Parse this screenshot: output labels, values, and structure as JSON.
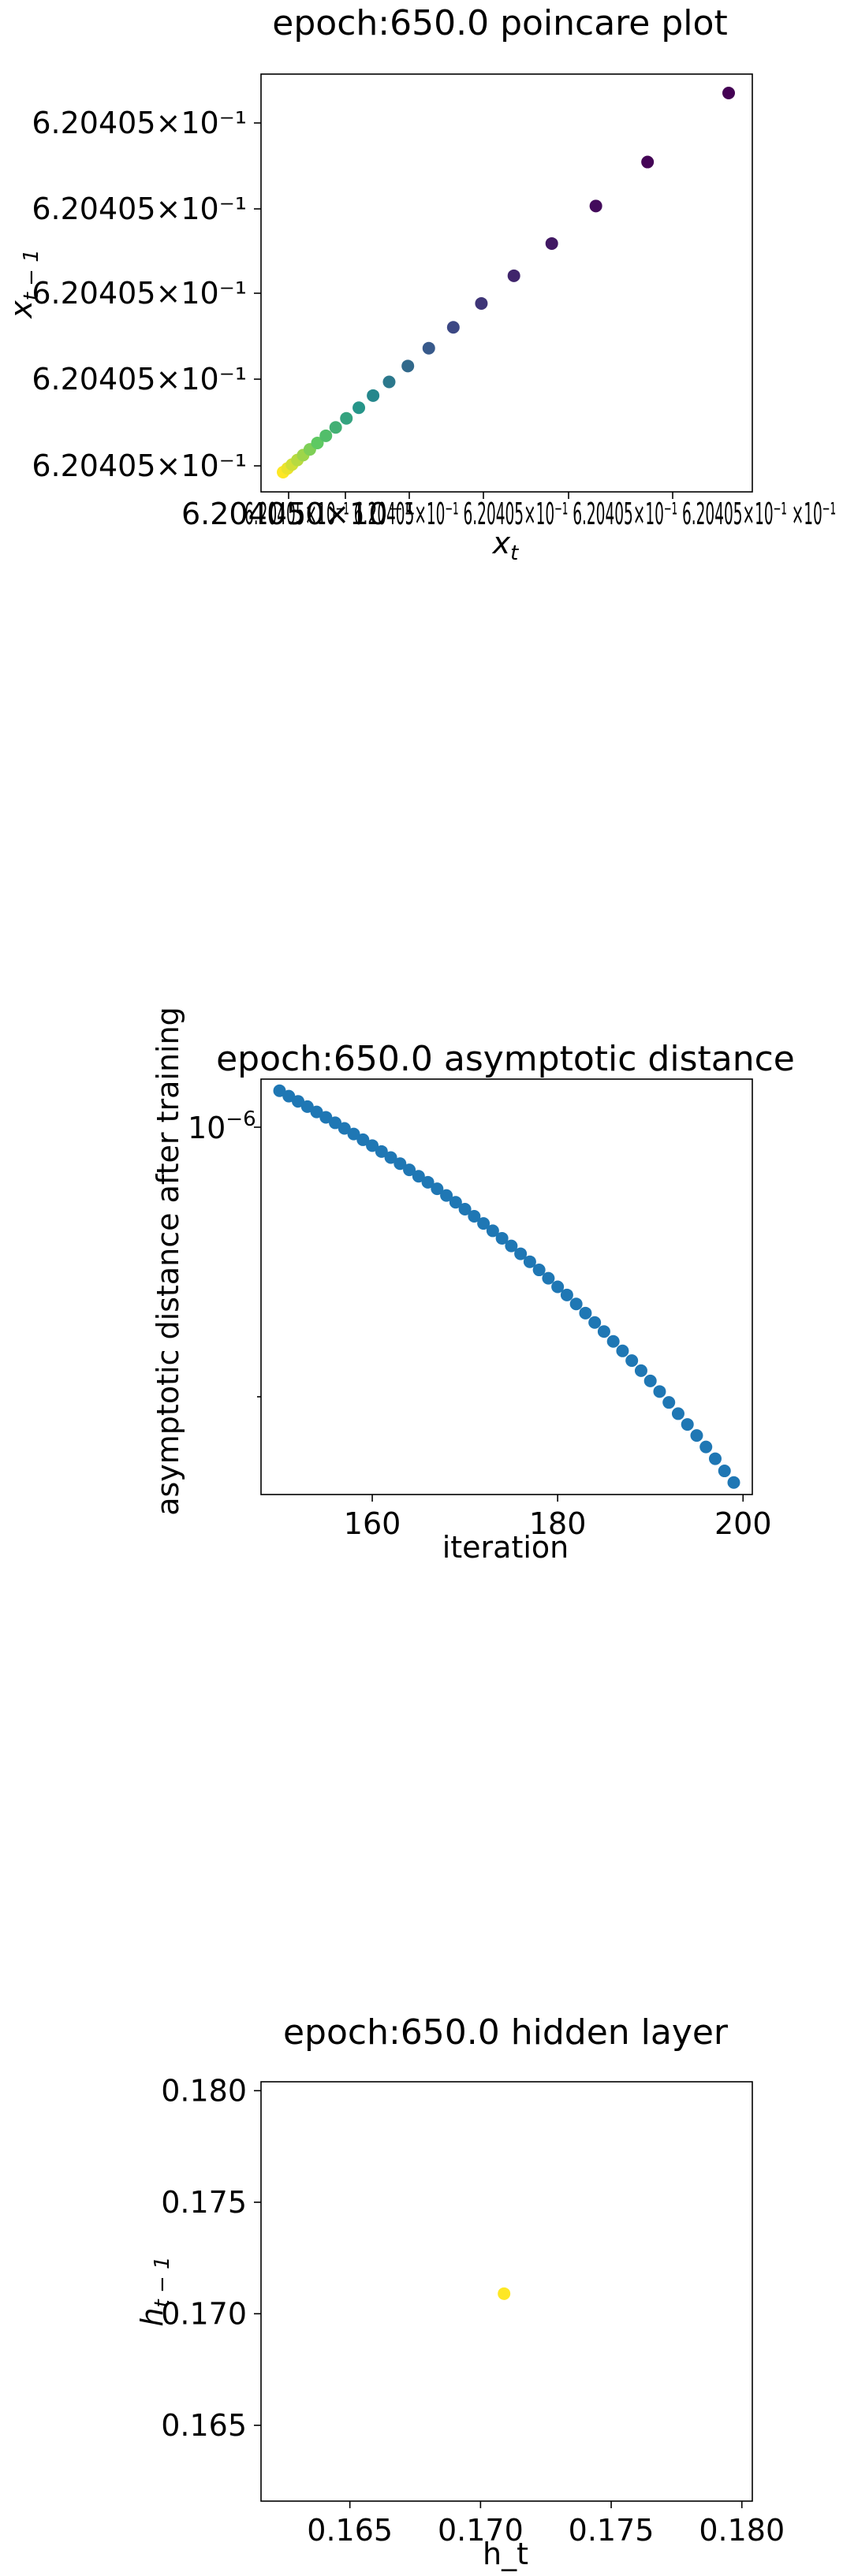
{
  "chart_data": [
    {
      "type": "scatter",
      "title": "epoch:650.0 poincare plot",
      "xlabel": "x_t",
      "ylabel": "x_{t-1}",
      "x_tick_labels_overlapping": "6.20405×10⁻¹ 6.20405×10⁻¹ 6.20405×10⁻¹ 6.20405×10⁻¹ 6.20405×10⁻¹ 6.20405×10⁻¹",
      "x_tick_text": "6.204050×​10⁻¹",
      "x_tick_overlay": "6.20405×​10⁻¹ 6.20405×​10⁻¹ 6.20405×​10⁻¹ 6.20405×​10⁻¹ 6.20405×​10⁻¹ ×10⁻¹",
      "y_tick_labels": [
        "6.20405×10⁻¹",
        "6.20405×10⁻¹",
        "6.20405×10⁻¹",
        "6.20405×10⁻¹",
        "6.20405×10⁻¹"
      ],
      "x_offset_label": "×10⁻¹",
      "colormap": "viridis",
      "points": [
        [
          0.0,
          0.0,
          1.0
        ],
        [
          0.01,
          0.01,
          0.97
        ],
        [
          0.02,
          0.02,
          0.93
        ],
        [
          0.032,
          0.032,
          0.89
        ],
        [
          0.045,
          0.045,
          0.85
        ],
        [
          0.06,
          0.06,
          0.8
        ],
        [
          0.077,
          0.077,
          0.75
        ],
        [
          0.096,
          0.096,
          0.7
        ],
        [
          0.118,
          0.118,
          0.64
        ],
        [
          0.142,
          0.142,
          0.58
        ],
        [
          0.17,
          0.17,
          0.52
        ],
        [
          0.202,
          0.202,
          0.46
        ],
        [
          0.238,
          0.238,
          0.4
        ],
        [
          0.28,
          0.28,
          0.34
        ],
        [
          0.327,
          0.327,
          0.28
        ],
        [
          0.382,
          0.382,
          0.22
        ],
        [
          0.445,
          0.445,
          0.16
        ],
        [
          0.518,
          0.518,
          0.11
        ],
        [
          0.603,
          0.603,
          0.07
        ],
        [
          0.702,
          0.702,
          0.03
        ],
        [
          0.818,
          0.818,
          0.01
        ],
        [
          1.0,
          1.0,
          0.0
        ]
      ]
    },
    {
      "type": "scatter",
      "title": "epoch:650.0 asymptotic distance",
      "xlabel": "iteration",
      "ylabel": "asymptotic distance after training",
      "yscale": "log",
      "xlim": [
        148,
        201
      ],
      "x_ticks": [
        160,
        180,
        200
      ],
      "y_tick_label_base": "10",
      "y_tick_label_exp": "−6",
      "color": "#1f77b4",
      "x": [
        150,
        151,
        152,
        153,
        154,
        155,
        156,
        157,
        158,
        159,
        160,
        161,
        162,
        163,
        164,
        165,
        166,
        167,
        168,
        169,
        170,
        171,
        172,
        173,
        174,
        175,
        176,
        177,
        178,
        179,
        180,
        181,
        182,
        183,
        184,
        185,
        186,
        187,
        188,
        189,
        190,
        191,
        192,
        193,
        194,
        195,
        196,
        197,
        198,
        199
      ],
      "y": [
        1.085e-06,
        1.069e-06,
        1.054e-06,
        1.039e-06,
        1.024e-06,
        1.009e-06,
        9.94e-07,
        9.79e-07,
        9.64e-07,
        9.49e-07,
        9.34e-07,
        9.19e-07,
        9.04e-07,
        8.89e-07,
        8.74e-07,
        8.59e-07,
        8.45e-07,
        8.3e-07,
        8.15e-07,
        8e-07,
        7.85e-07,
        7.7e-07,
        7.55e-07,
        7.4e-07,
        7.25e-07,
        7.1e-07,
        6.95e-07,
        6.8e-07,
        6.65e-07,
        6.5e-07,
        6.35e-07,
        6.21e-07,
        6.06e-07,
        5.91e-07,
        5.76e-07,
        5.62e-07,
        5.47e-07,
        5.33e-07,
        5.19e-07,
        5.05e-07,
        4.91e-07,
        4.77e-07,
        4.63e-07,
        4.49e-07,
        4.36e-07,
        4.23e-07,
        4.1e-07,
        3.97e-07,
        3.84e-07,
        3.72e-07
      ],
      "ylim_log": [
        3.6e-07,
        1.12e-06
      ]
    },
    {
      "type": "scatter",
      "title": "epoch:650.0 hidden layer",
      "xlabel": "h_t",
      "ylabel": "h_{t-1}",
      "xlim": [
        0.1616,
        0.1804
      ],
      "ylim": [
        0.1616,
        0.1804
      ],
      "x_ticks": [
        0.165,
        0.17,
        0.175,
        0.18
      ],
      "x_tick_labels": [
        "0.165",
        "0.170",
        "0.175",
        "0.180"
      ],
      "y_ticks": [
        0.165,
        0.17,
        0.175,
        0.18
      ],
      "y_tick_labels": [
        "0.165",
        "0.170",
        "0.175",
        "0.180"
      ],
      "point": [
        0.1709,
        0.1709
      ],
      "color": "#fde725"
    }
  ]
}
